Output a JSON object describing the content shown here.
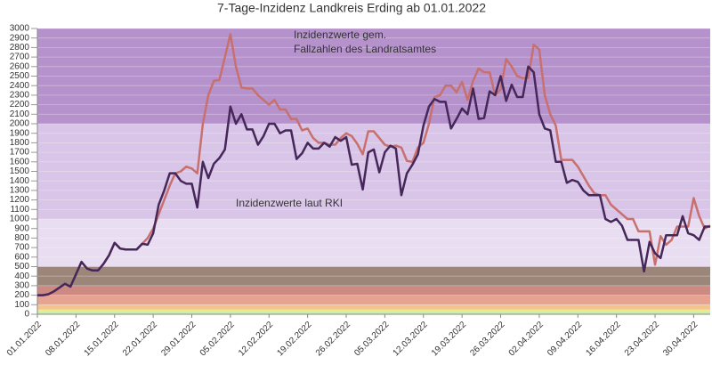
{
  "chart_data": {
    "type": "line",
    "title": "7-Tage-Inzidenz Landkreis Erding ab 01.01.2022",
    "x": [
      "01.01.2022",
      "02.01.2022",
      "03.01.2022",
      "04.01.2022",
      "05.01.2022",
      "06.01.2022",
      "07.01.2022",
      "08.01.2022",
      "09.01.2022",
      "10.01.2022",
      "11.01.2022",
      "12.01.2022",
      "13.01.2022",
      "14.01.2022",
      "15.01.2022",
      "16.01.2022",
      "17.01.2022",
      "18.01.2022",
      "19.01.2022",
      "20.01.2022",
      "21.01.2022",
      "22.01.2022",
      "23.01.2022",
      "24.01.2022",
      "25.01.2022",
      "26.01.2022",
      "27.01.2022",
      "28.01.2022",
      "29.01.2022",
      "30.01.2022",
      "31.01.2022",
      "01.02.2022",
      "02.02.2022",
      "03.02.2022",
      "04.02.2022",
      "05.02.2022",
      "06.02.2022",
      "07.02.2022",
      "08.02.2022",
      "09.02.2022",
      "10.02.2022",
      "11.02.2022",
      "12.02.2022",
      "13.02.2022",
      "14.02.2022",
      "15.02.2022",
      "16.02.2022",
      "17.02.2022",
      "18.02.2022",
      "19.02.2022",
      "20.02.2022",
      "21.02.2022",
      "22.02.2022",
      "23.02.2022",
      "24.02.2022",
      "25.02.2022",
      "26.02.2022",
      "27.02.2022",
      "28.02.2022",
      "01.03.2022",
      "02.03.2022",
      "03.03.2022",
      "04.03.2022",
      "05.03.2022",
      "06.03.2022",
      "07.03.2022",
      "08.03.2022",
      "09.03.2022",
      "10.03.2022",
      "11.03.2022",
      "12.03.2022",
      "13.03.2022",
      "14.03.2022",
      "15.03.2022",
      "16.03.2022",
      "17.03.2022",
      "18.03.2022",
      "19.03.2022",
      "20.03.2022",
      "21.03.2022",
      "22.03.2022",
      "23.03.2022",
      "24.03.2022",
      "25.03.2022",
      "26.03.2022",
      "27.03.2022",
      "28.03.2022",
      "29.03.2022",
      "30.03.2022",
      "31.03.2022",
      "01.04.2022",
      "02.04.2022",
      "03.04.2022",
      "04.04.2022",
      "05.04.2022",
      "06.04.2022",
      "07.04.2022",
      "08.04.2022",
      "09.04.2022",
      "10.04.2022",
      "11.04.2022",
      "12.04.2022",
      "13.04.2022",
      "14.04.2022",
      "15.04.2022",
      "16.04.2022",
      "17.04.2022",
      "18.04.2022",
      "19.04.2022",
      "20.04.2022",
      "21.04.2022",
      "22.04.2022",
      "23.04.2022",
      "24.04.2022",
      "25.04.2022",
      "26.04.2022",
      "27.04.2022",
      "28.04.2022",
      "29.04.2022",
      "30.04.2022",
      "01.05.2022",
      "02.05.2022",
      "03.05.2022"
    ],
    "series": [
      {
        "color": "#c8706e",
        "values": [
          200,
          200,
          210,
          240,
          280,
          320,
          290,
          420,
          550,
          480,
          460,
          460,
          530,
          620,
          750,
          690,
          680,
          680,
          680,
          740,
          800,
          900,
          1050,
          1200,
          1350,
          1480,
          1500,
          1550,
          1530,
          1480,
          2000,
          2300,
          2450,
          2460,
          2700,
          2940,
          2600,
          2380,
          2370,
          2370,
          2300,
          2250,
          2200,
          2250,
          2150,
          2150,
          2050,
          2050,
          1930,
          1950,
          1850,
          1800,
          1800,
          1780,
          1780,
          1850,
          1900,
          1870,
          1790,
          1680,
          1920,
          1920,
          1850,
          1780,
          1760,
          1770,
          1750,
          1610,
          1600,
          1750,
          1800,
          2000,
          2280,
          2300,
          2400,
          2400,
          2330,
          2440,
          2250,
          2450,
          2580,
          2540,
          2540,
          2300,
          2360,
          2680,
          2600,
          2500,
          2480,
          2480,
          2830,
          2780,
          2300,
          2100,
          1980,
          1620,
          1620,
          1620,
          1550,
          1450,
          1350,
          1270,
          1250,
          1250,
          1150,
          1100,
          1050,
          1000,
          1000,
          870,
          870,
          870,
          520,
          820,
          730,
          780,
          920,
          920,
          920,
          1220,
          1030,
          900,
          930
        ]
      },
      {
        "color": "#45275a",
        "values": [
          200,
          200,
          210,
          240,
          280,
          320,
          290,
          420,
          550,
          480,
          460,
          460,
          530,
          620,
          750,
          690,
          680,
          680,
          680,
          740,
          730,
          850,
          1150,
          1300,
          1480,
          1480,
          1400,
          1370,
          1370,
          1120,
          1600,
          1430,
          1580,
          1640,
          1730,
          2180,
          2000,
          2100,
          1940,
          1940,
          1780,
          1870,
          2000,
          2000,
          1900,
          1930,
          1930,
          1630,
          1690,
          1800,
          1740,
          1740,
          1800,
          1760,
          1860,
          1820,
          1860,
          1570,
          1580,
          1310,
          1700,
          1730,
          1490,
          1700,
          1770,
          1740,
          1250,
          1480,
          1570,
          1680,
          1980,
          2180,
          2260,
          2230,
          2230,
          1950,
          2050,
          2160,
          2100,
          2370,
          2050,
          2060,
          2340,
          2300,
          2500,
          2240,
          2410,
          2280,
          2280,
          2600,
          2540,
          2100,
          1950,
          1930,
          1600,
          1600,
          1380,
          1410,
          1390,
          1300,
          1250,
          1250,
          1250,
          1000,
          970,
          1000,
          930,
          780,
          780,
          780,
          450,
          760,
          640,
          590,
          830,
          830,
          830,
          1030,
          850,
          830,
          780,
          920,
          920
        ]
      }
    ],
    "xticks": [
      "01.01.2022",
      "08.01.2022",
      "15.01.2022",
      "22.01.2022",
      "29.01.2022",
      "05.02.2022",
      "12.02.2022",
      "19.02.2022",
      "26.02.2022",
      "05.03.2022",
      "12.03.2022",
      "19.03.2022",
      "26.03.2022",
      "02.04.2022",
      "09.04.2022",
      "16.04.2022",
      "23.04.2022",
      "30.04.2022"
    ],
    "ylim": [
      0,
      3000
    ],
    "yticks": [
      0,
      100,
      200,
      300,
      400,
      500,
      600,
      700,
      800,
      900,
      1000,
      1100,
      1200,
      1300,
      1400,
      1500,
      1600,
      1700,
      1800,
      1900,
      2000,
      2100,
      2200,
      2300,
      2400,
      2500,
      2600,
      2700,
      2800,
      2900,
      3000
    ],
    "grid": true,
    "bands": [
      {
        "from": 0,
        "to": 35,
        "color": "#c9f0a6"
      },
      {
        "from": 35,
        "to": 50,
        "color": "#f6e48c"
      },
      {
        "from": 50,
        "to": 100,
        "color": "#f2c48e"
      },
      {
        "from": 100,
        "to": 200,
        "color": "#e6a392"
      },
      {
        "from": 200,
        "to": 300,
        "color": "#cc8a82"
      },
      {
        "from": 300,
        "to": 500,
        "color": "#9c8579"
      },
      {
        "from": 500,
        "to": 1000,
        "color": "#e9def1"
      },
      {
        "from": 1000,
        "to": 2000,
        "color": "#d9c5e7"
      },
      {
        "from": 2000,
        "to": 3000,
        "color": "#b692cc"
      }
    ],
    "annotations": [
      {
        "text": [
          "Inzidenzwerte gem.",
          "Fallzahlen des Landratsamtes"
        ],
        "color": "#c0203a"
      },
      {
        "text": [
          "Inzidenzwerte laut RKI"
        ],
        "color": "#222222"
      }
    ]
  }
}
